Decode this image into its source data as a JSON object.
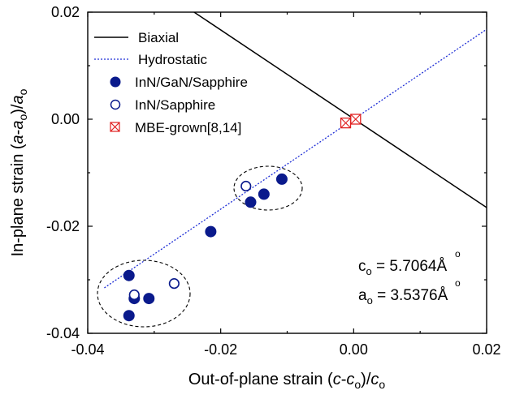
{
  "chart_data": {
    "type": "scatter",
    "xlabel": "Out-of-plane strain (c-co)/co",
    "ylabel": "In-plane strain (a-ao)/ao",
    "xlim": [
      -0.04,
      0.02
    ],
    "ylim": [
      -0.04,
      0.02
    ],
    "x_ticks": [
      -0.04,
      -0.02,
      0.0,
      0.02
    ],
    "x_tick_labels": [
      "-0.04",
      "-0.02",
      "0.00",
      "0.02"
    ],
    "y_ticks": [
      -0.04,
      -0.02,
      0.0,
      0.02
    ],
    "y_tick_labels": [
      "-0.04",
      "-0.02",
      "0.00",
      "0.02"
    ],
    "grid": false,
    "legend_position": "top-left",
    "lines": [
      {
        "name": "Biaxial",
        "style": "solid",
        "color": "#000000",
        "points": [
          [
            -0.024,
            0.02
          ],
          [
            0.02,
            -0.0165
          ]
        ]
      },
      {
        "name": "Hydrostatic",
        "style": "dotted",
        "color": "#1f2fd6",
        "points": [
          [
            -0.0375,
            -0.0315
          ],
          [
            0.02,
            0.0168
          ]
        ]
      }
    ],
    "series": [
      {
        "name": "InN/GaN/Sapphire",
        "marker": "filled-circle",
        "color": "#0a1a8c",
        "x": [
          -0.0338,
          -0.0338,
          -0.033,
          -0.0308,
          -0.0215,
          -0.0155,
          -0.0135,
          -0.0108
        ],
        "y": [
          -0.0292,
          -0.0367,
          -0.0335,
          -0.0335,
          -0.021,
          -0.0155,
          -0.014,
          -0.0112
        ]
      },
      {
        "name": "InN/Sapphire",
        "marker": "open-circle",
        "color": "#0a1a8c",
        "x": [
          -0.033,
          -0.027,
          -0.0162
        ],
        "y": [
          -0.0328,
          -0.0307,
          -0.0125
        ]
      },
      {
        "name": "MBE-grown[8,14]",
        "marker": "crossed-square",
        "color": "#e02020",
        "x": [
          -0.0012,
          0.0003
        ],
        "y": [
          -0.0007,
          0.0
        ]
      }
    ],
    "annotations": [
      {
        "text": "co = 5.7064Å",
        "subscript_char": "o"
      },
      {
        "text": "ao = 3.5376Å",
        "subscript_char": "o"
      }
    ]
  },
  "labels": {
    "x_title_prefix": "Out-of-plane strain (",
    "x_title_c1": "c",
    "x_title_dash": "-",
    "x_title_c2": "c",
    "x_title_sub": "o",
    "x_title_mid": ")/",
    "x_title_c3": "c",
    "x_title_sub2": "o",
    "y_title_prefix": "In-plane strain (",
    "y_title_a1": "a",
    "y_title_dash": "-",
    "y_title_a2": "a",
    "y_title_sub": "o",
    "y_title_mid": ")/",
    "y_title_a3": "a",
    "y_title_sub2": "o",
    "annot_c_main": "c",
    "annot_c_sub": "o",
    "annot_c_val": " = 5.7064",
    "annot_c_unit": "Å",
    "annot_a_main": "a",
    "annot_a_sub": "o",
    "annot_a_val": " = 3.5376",
    "annot_a_unit": "Å",
    "annot_unit_ring": "o"
  }
}
